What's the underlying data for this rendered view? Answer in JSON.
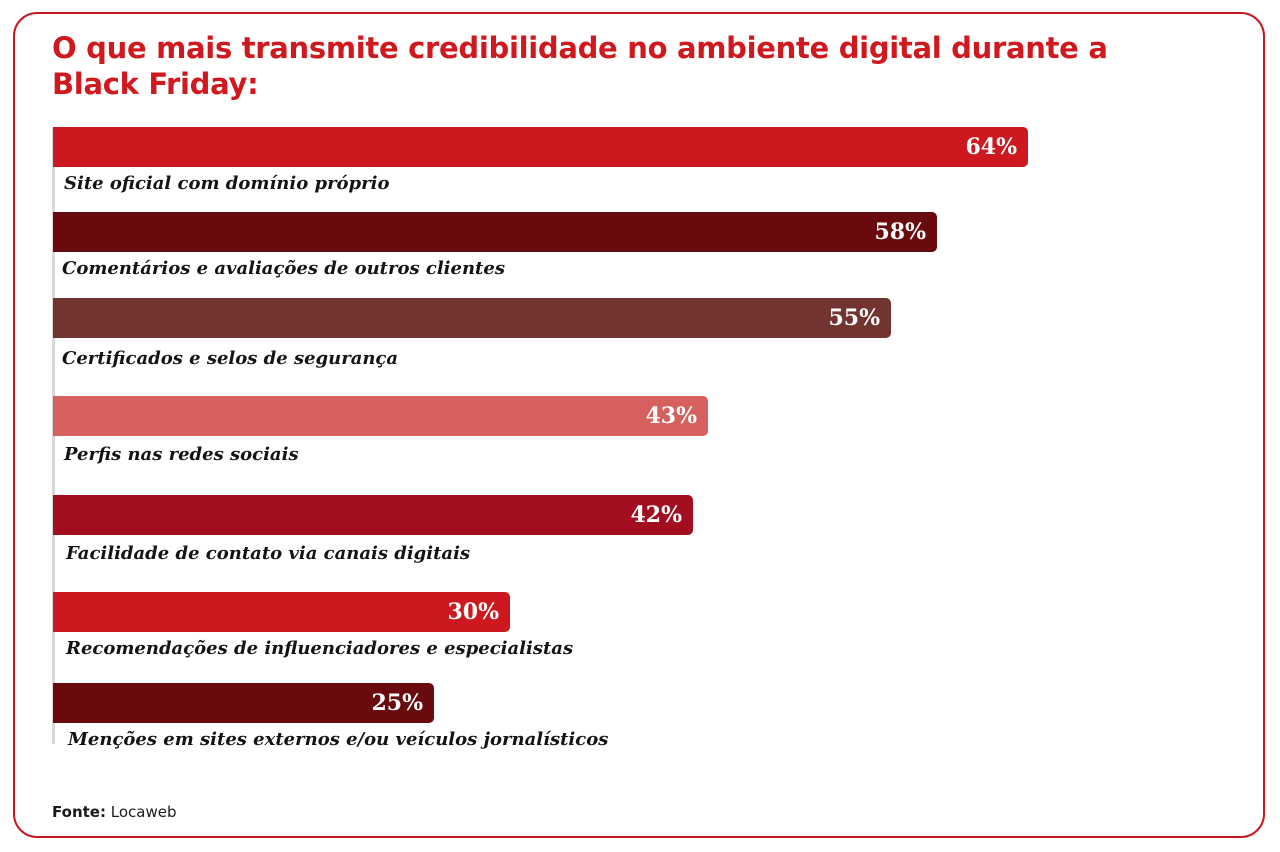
{
  "chart_data": {
    "type": "bar",
    "orientation": "horizontal",
    "title": "O que mais transmite credibilidade no ambiente digital durante a Black Friday:",
    "categories": [
      "Site oficial com domínio próprio",
      "Comentários e avaliações de outros clientes",
      "Certificados e selos de segurança",
      "Perfis nas redes sociais",
      "Facilidade de contato via canais digitais",
      "Recomendações de influenciadores e especialistas",
      "Menções em sites externos e/ou veículos jornalísticos"
    ],
    "values": [
      64,
      58,
      55,
      43,
      42,
      30,
      25
    ],
    "value_labels": [
      "64%",
      "58%",
      "55%",
      "43%",
      "42%",
      "30%",
      "25%"
    ],
    "colors": [
      "#cc181e",
      "#690a0e",
      "#713430",
      "#d5605d",
      "#a20e1f",
      "#cc181e",
      "#690a0e"
    ],
    "xlim": [
      0,
      100
    ],
    "unit": "%",
    "grid": false,
    "legend": "none"
  },
  "source": {
    "label": "Fonte:",
    "value": "Locaweb"
  }
}
